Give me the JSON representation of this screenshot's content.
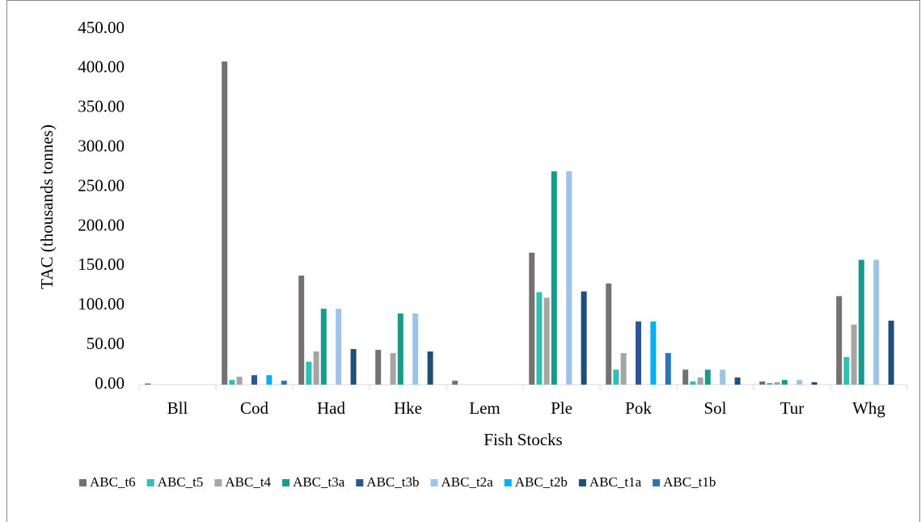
{
  "chart_data": {
    "type": "bar",
    "x_label": "Fish Stocks",
    "y_label": "TAC (thousands tonnes)",
    "categories": [
      "Bll",
      "Cod",
      "Had",
      "Hke",
      "Lem",
      "Ple",
      "Pok",
      "Sol",
      "Tur",
      "Whg"
    ],
    "ylim": [
      0,
      450
    ],
    "yticks": [
      {
        "value": 0,
        "label": "0.00"
      },
      {
        "value": 50,
        "label": "50.00"
      },
      {
        "value": 100,
        "label": "100.00"
      },
      {
        "value": 150,
        "label": "150.00"
      },
      {
        "value": 200,
        "label": "200.00"
      },
      {
        "value": 250,
        "label": "250.00"
      },
      {
        "value": 300,
        "label": "300.00"
      },
      {
        "value": 350,
        "label": "350.00"
      },
      {
        "value": 400,
        "label": "400.00"
      },
      {
        "value": 450,
        "label": "450.00"
      }
    ],
    "grid": false,
    "legend": "bottom",
    "series": [
      {
        "name": "ABC_t6",
        "color": "#767171",
        "values": [
          1.5,
          409,
          138,
          44,
          5,
          167,
          128,
          19,
          4,
          112
        ]
      },
      {
        "name": "ABC_t5",
        "color": "#2ebfb5",
        "values": [
          0,
          6,
          29,
          0,
          0,
          117,
          19,
          4,
          2,
          35
        ]
      },
      {
        "name": "ABC_t4",
        "color": "#a5a5a5",
        "values": [
          0,
          10,
          42,
          40,
          0,
          110,
          40,
          9,
          3,
          76
        ]
      },
      {
        "name": "ABC_t3a",
        "color": "#169c8a",
        "values": [
          0,
          0,
          96,
          90,
          0,
          270,
          0,
          19,
          6,
          158
        ]
      },
      {
        "name": "ABC_t3b",
        "color": "#2f5597",
        "values": [
          0,
          12,
          0,
          0,
          0,
          0,
          80,
          0,
          0,
          0
        ]
      },
      {
        "name": "ABC_t2a",
        "color": "#9dc3e6",
        "values": [
          0,
          0,
          96,
          90,
          0,
          270,
          0,
          19,
          6,
          158
        ]
      },
      {
        "name": "ABC_t2b",
        "color": "#00b0f0",
        "values": [
          0,
          12,
          0,
          0,
          0,
          0,
          80,
          0,
          0,
          0
        ]
      },
      {
        "name": "ABC_t1a",
        "color": "#1f4e79",
        "values": [
          0,
          0,
          45,
          42,
          0,
          118,
          0,
          9,
          3,
          81
        ]
      },
      {
        "name": "ABC_t1b",
        "color": "#2e75b6",
        "values": [
          0,
          5,
          0,
          0,
          0,
          0,
          40,
          0,
          0,
          0
        ]
      }
    ]
  }
}
